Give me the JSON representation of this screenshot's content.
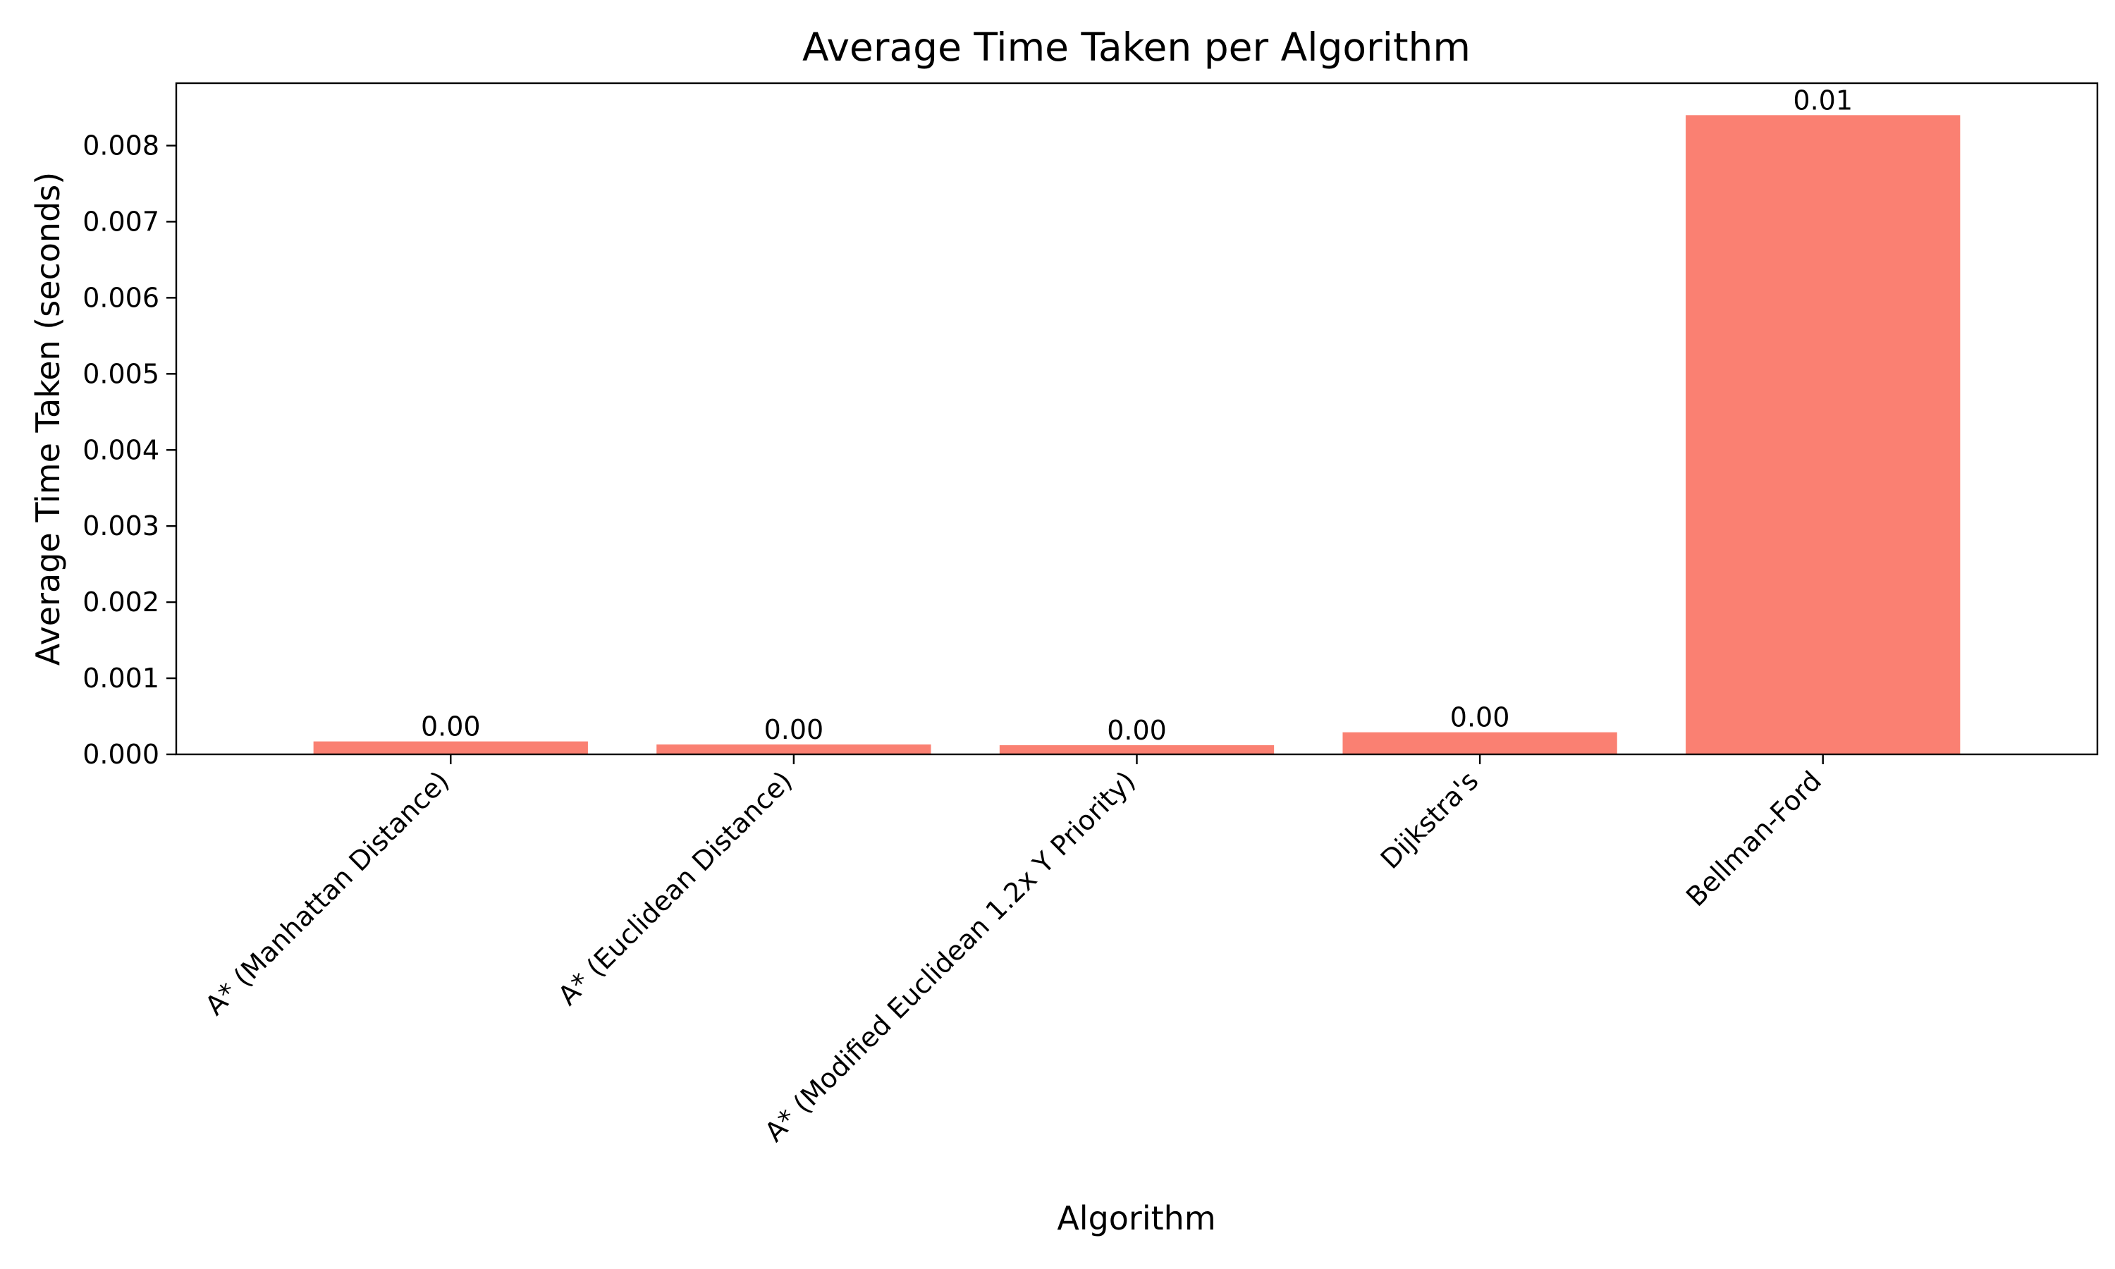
{
  "chart_data": {
    "type": "bar",
    "title": "Average Time Taken per Algorithm",
    "xlabel": "Algorithm",
    "ylabel": "Average Time Taken (seconds)",
    "categories": [
      "A* (Manhattan Distance)",
      "A* (Euclidean Distance)",
      "A* (Modified Euclidean 1.2x Y Priority)",
      "Dijkstra's",
      "Bellman-Ford"
    ],
    "values": [
      0.00017,
      0.00013,
      0.00012,
      0.00029,
      0.0084
    ],
    "value_labels": [
      "0.00",
      "0.00",
      "0.00",
      "0.00",
      "0.01"
    ],
    "ylim": [
      0,
      0.00882
    ],
    "yticks": [
      0.0,
      0.001,
      0.002,
      0.003,
      0.004,
      0.005,
      0.006,
      0.007,
      0.008
    ],
    "ytick_labels": [
      "0.000",
      "0.001",
      "0.002",
      "0.003",
      "0.004",
      "0.005",
      "0.006",
      "0.007",
      "0.008"
    ],
    "grid": false,
    "bar_color": "#fa8072"
  }
}
